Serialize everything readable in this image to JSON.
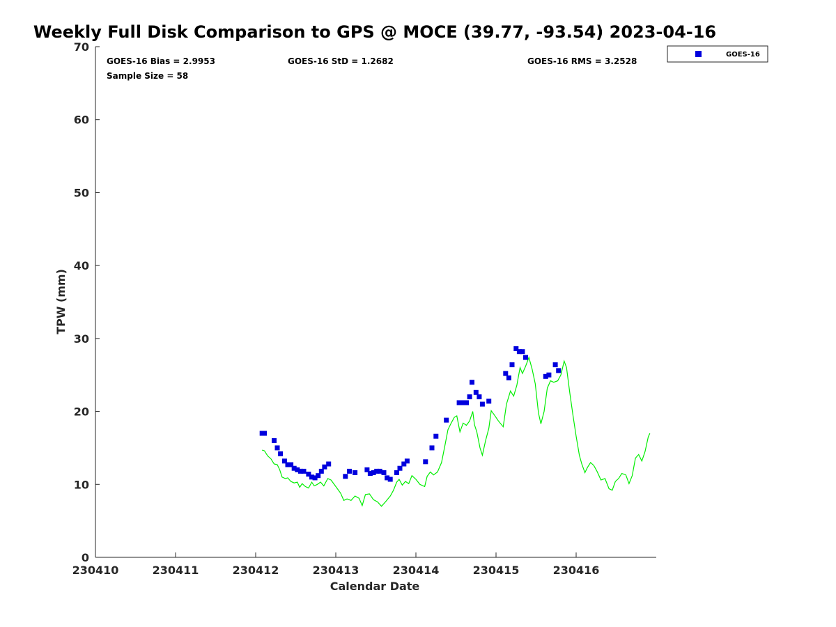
{
  "chart_data": {
    "type": "scatter",
    "title": "Weekly Full Disk Comparison to GPS @ MOCE (39.77, -93.54) 2023-04-16",
    "xlabel": "Calendar Date",
    "ylabel": "TPW (mm)",
    "xlim": [
      230410,
      230417
    ],
    "ylim": [
      0,
      70
    ],
    "x_ticks": [
      230410,
      230411,
      230412,
      230413,
      230414,
      230415,
      230416
    ],
    "x_tick_labels": [
      "230410",
      "230411",
      "230412",
      "230413",
      "230414",
      "230415",
      "230416"
    ],
    "y_ticks": [
      0,
      10,
      20,
      30,
      40,
      50,
      60,
      70
    ],
    "y_tick_labels": [
      "0",
      "10",
      "20",
      "30",
      "40",
      "50",
      "60",
      "70"
    ],
    "stats": {
      "bias": "GOES-16 Bias = 2.9953",
      "std": "GOES-16 StD = 1.2682",
      "rms": "GOES-16 RMS = 3.2528",
      "sample_size": "Sample Size = 58"
    },
    "legend": {
      "placement": "top-right",
      "entries": [
        "GOES-16"
      ]
    },
    "colors": {
      "goes": "#0000dd",
      "gps": "#00ee00",
      "axis": "#262626"
    },
    "series": [
      {
        "name": "GOES-16",
        "style": "square-markers",
        "points": [
          [
            230412.08,
            17.0
          ],
          [
            230412.11,
            17.0
          ],
          [
            230412.23,
            16.0
          ],
          [
            230412.27,
            15.0
          ],
          [
            230412.31,
            14.2
          ],
          [
            230412.36,
            13.2
          ],
          [
            230412.4,
            12.7
          ],
          [
            230412.44,
            12.7
          ],
          [
            230412.48,
            12.2
          ],
          [
            230412.52,
            12.0
          ],
          [
            230412.56,
            11.8
          ],
          [
            230412.6,
            11.8
          ],
          [
            230412.66,
            11.4
          ],
          [
            230412.7,
            11.0
          ],
          [
            230412.74,
            10.9
          ],
          [
            230412.78,
            11.2
          ],
          [
            230412.82,
            11.8
          ],
          [
            230412.86,
            12.4
          ],
          [
            230412.91,
            12.8
          ],
          [
            230413.12,
            11.1
          ],
          [
            230413.17,
            11.8
          ],
          [
            230413.24,
            11.6
          ],
          [
            230413.39,
            12.0
          ],
          [
            230413.43,
            11.5
          ],
          [
            230413.47,
            11.6
          ],
          [
            230413.51,
            11.8
          ],
          [
            230413.55,
            11.8
          ],
          [
            230413.6,
            11.6
          ],
          [
            230413.64,
            10.9
          ],
          [
            230413.68,
            10.7
          ],
          [
            230413.76,
            11.6
          ],
          [
            230413.8,
            12.2
          ],
          [
            230413.85,
            12.8
          ],
          [
            230413.89,
            13.2
          ],
          [
            230414.12,
            13.1
          ],
          [
            230414.2,
            15.0
          ],
          [
            230414.25,
            16.6
          ],
          [
            230414.38,
            18.8
          ],
          [
            230414.54,
            21.2
          ],
          [
            230414.58,
            21.2
          ],
          [
            230414.63,
            21.2
          ],
          [
            230414.67,
            22.0
          ],
          [
            230414.7,
            24.0
          ],
          [
            230414.75,
            22.6
          ],
          [
            230414.79,
            22.0
          ],
          [
            230414.83,
            21.0
          ],
          [
            230414.91,
            21.4
          ],
          [
            230415.12,
            25.2
          ],
          [
            230415.16,
            24.6
          ],
          [
            230415.2,
            26.4
          ],
          [
            230415.25,
            28.6
          ],
          [
            230415.29,
            28.2
          ],
          [
            230415.33,
            28.2
          ],
          [
            230415.37,
            27.4
          ],
          [
            230415.62,
            24.8
          ],
          [
            230415.66,
            25.0
          ],
          [
            230415.74,
            26.4
          ],
          [
            230415.78,
            25.6
          ]
        ]
      },
      {
        "name": "GPS",
        "style": "line",
        "points": [
          [
            230412.08,
            14.7
          ],
          [
            230412.11,
            14.6
          ],
          [
            230412.15,
            13.9
          ],
          [
            230412.19,
            13.5
          ],
          [
            230412.23,
            12.8
          ],
          [
            230412.27,
            12.7
          ],
          [
            230412.3,
            12.0
          ],
          [
            230412.33,
            11.0
          ],
          [
            230412.37,
            10.8
          ],
          [
            230412.4,
            10.9
          ],
          [
            230412.44,
            10.4
          ],
          [
            230412.48,
            10.2
          ],
          [
            230412.52,
            10.3
          ],
          [
            230412.55,
            9.6
          ],
          [
            230412.58,
            10.1
          ],
          [
            230412.62,
            9.7
          ],
          [
            230412.66,
            9.5
          ],
          [
            230412.7,
            10.3
          ],
          [
            230412.73,
            9.8
          ],
          [
            230412.77,
            10.0
          ],
          [
            230412.81,
            10.3
          ],
          [
            230412.85,
            9.8
          ],
          [
            230412.9,
            10.8
          ],
          [
            230412.94,
            10.6
          ],
          [
            230413.0,
            9.7
          ],
          [
            230413.06,
            8.8
          ],
          [
            230413.1,
            7.8
          ],
          [
            230413.14,
            8.0
          ],
          [
            230413.19,
            7.8
          ],
          [
            230413.24,
            8.4
          ],
          [
            230413.29,
            8.1
          ],
          [
            230413.33,
            7.1
          ],
          [
            230413.37,
            8.6
          ],
          [
            230413.42,
            8.7
          ],
          [
            230413.47,
            7.9
          ],
          [
            230413.52,
            7.6
          ],
          [
            230413.57,
            7.0
          ],
          [
            230413.62,
            7.6
          ],
          [
            230413.68,
            8.4
          ],
          [
            230413.72,
            9.2
          ],
          [
            230413.76,
            10.3
          ],
          [
            230413.79,
            10.7
          ],
          [
            230413.83,
            9.9
          ],
          [
            230413.87,
            10.4
          ],
          [
            230413.91,
            10.1
          ],
          [
            230413.95,
            11.2
          ],
          [
            230414.0,
            10.7
          ],
          [
            230414.05,
            10.0
          ],
          [
            230414.11,
            9.7
          ],
          [
            230414.14,
            11.1
          ],
          [
            230414.18,
            11.7
          ],
          [
            230414.22,
            11.3
          ],
          [
            230414.27,
            11.7
          ],
          [
            230414.32,
            13.0
          ],
          [
            230414.36,
            15.2
          ],
          [
            230414.4,
            17.5
          ],
          [
            230414.44,
            18.4
          ],
          [
            230414.48,
            19.2
          ],
          [
            230414.51,
            19.4
          ],
          [
            230414.55,
            17.2
          ],
          [
            230414.59,
            18.4
          ],
          [
            230414.63,
            18.1
          ],
          [
            230414.67,
            18.7
          ],
          [
            230414.71,
            20.0
          ],
          [
            230414.73,
            18.2
          ],
          [
            230414.76,
            17.2
          ],
          [
            230414.8,
            15.0
          ],
          [
            230414.83,
            14.0
          ],
          [
            230414.87,
            16.0
          ],
          [
            230414.91,
            17.7
          ],
          [
            230414.94,
            20.1
          ],
          [
            230414.98,
            19.5
          ],
          [
            230415.03,
            18.7
          ],
          [
            230415.09,
            17.9
          ],
          [
            230415.13,
            21.0
          ],
          [
            230415.18,
            22.8
          ],
          [
            230415.22,
            22.1
          ],
          [
            230415.26,
            23.6
          ],
          [
            230415.3,
            26.0
          ],
          [
            230415.33,
            25.2
          ],
          [
            230415.37,
            26.2
          ],
          [
            230415.41,
            27.4
          ],
          [
            230415.45,
            25.8
          ],
          [
            230415.49,
            23.8
          ],
          [
            230415.53,
            19.8
          ],
          [
            230415.56,
            18.3
          ],
          [
            230415.6,
            20.0
          ],
          [
            230415.64,
            23.2
          ],
          [
            230415.68,
            24.2
          ],
          [
            230415.72,
            24.0
          ],
          [
            230415.77,
            24.2
          ],
          [
            230415.81,
            25.0
          ],
          [
            230415.85,
            26.9
          ],
          [
            230415.88,
            26.0
          ],
          [
            230415.92,
            22.6
          ],
          [
            230415.96,
            19.5
          ],
          [
            230416.0,
            16.6
          ],
          [
            230416.04,
            14.0
          ],
          [
            230416.07,
            12.8
          ],
          [
            230416.11,
            11.6
          ],
          [
            230416.14,
            12.3
          ],
          [
            230416.18,
            13.0
          ],
          [
            230416.22,
            12.6
          ],
          [
            230416.26,
            11.8
          ],
          [
            230416.31,
            10.6
          ],
          [
            230416.36,
            10.8
          ],
          [
            230416.41,
            9.4
          ],
          [
            230416.45,
            9.2
          ],
          [
            230416.49,
            10.4
          ],
          [
            230416.53,
            10.8
          ],
          [
            230416.57,
            11.5
          ],
          [
            230416.62,
            11.3
          ],
          [
            230416.66,
            10.1
          ],
          [
            230416.7,
            11.2
          ],
          [
            230416.74,
            13.6
          ],
          [
            230416.78,
            14.1
          ],
          [
            230416.82,
            13.2
          ],
          [
            230416.86,
            14.5
          ],
          [
            230416.9,
            16.5
          ],
          [
            230416.92,
            17.0
          ]
        ]
      }
    ]
  }
}
